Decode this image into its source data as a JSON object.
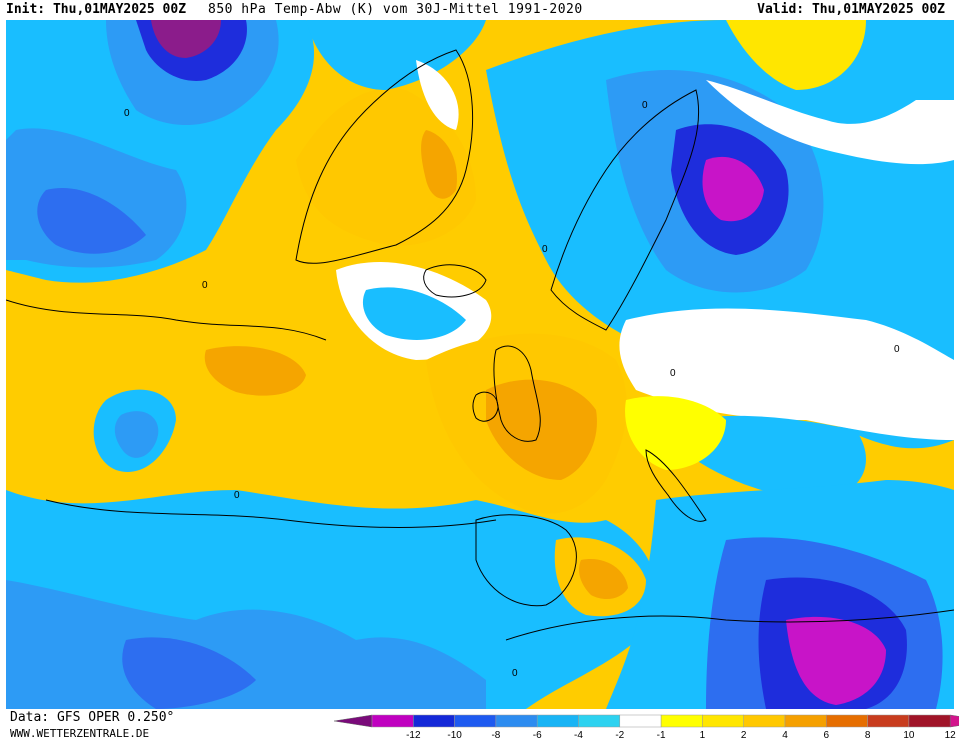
{
  "header": {
    "init_label": "Init:",
    "init_value": "Thu,01MAY2025 00Z",
    "title": "850 hPa Temp-Abw (K) vom 30J-Mittel 1991-2020",
    "valid_label": "Valid:",
    "valid_value": "Thu,01MAY2025 00Z"
  },
  "footer": {
    "data_source": "Data: GFS OPER 0.250°",
    "website": "WWW.WETTERZENTRALE.DE"
  },
  "legend": {
    "ticks": [
      "-12",
      "-10",
      "-8",
      "-6",
      "-4",
      "-2",
      "-1",
      "1",
      "2",
      "4",
      "6",
      "8",
      "10",
      "12"
    ],
    "colors": [
      "#7a0a7a",
      "#c000c0",
      "#1428d8",
      "#1e5af0",
      "#2d8cf0",
      "#19b4f5",
      "#2dd2f0",
      "#ffffff",
      "#ffff00",
      "#ffe600",
      "#ffc800",
      "#f5a000",
      "#e66e00",
      "#c83c1e",
      "#a01428",
      "#d2148c"
    ]
  },
  "map": {
    "contour_label": "0",
    "palette": {
      "background": "#ffcc00",
      "neg12": "#8b1c8b",
      "neg10": "#c814c8",
      "neg8": "#1e2ddc",
      "neg6": "#2d6ef0",
      "neg4": "#2d9bf5",
      "neg2": "#19beff",
      "neg1": "#3cdcf5",
      "zero": "#ffffff",
      "pos1": "#ffff00",
      "pos2": "#ffe600",
      "pos4": "#ffc800",
      "pos6": "#f5a500",
      "pos8": "#e67814",
      "pos10": "#c8501e"
    }
  }
}
